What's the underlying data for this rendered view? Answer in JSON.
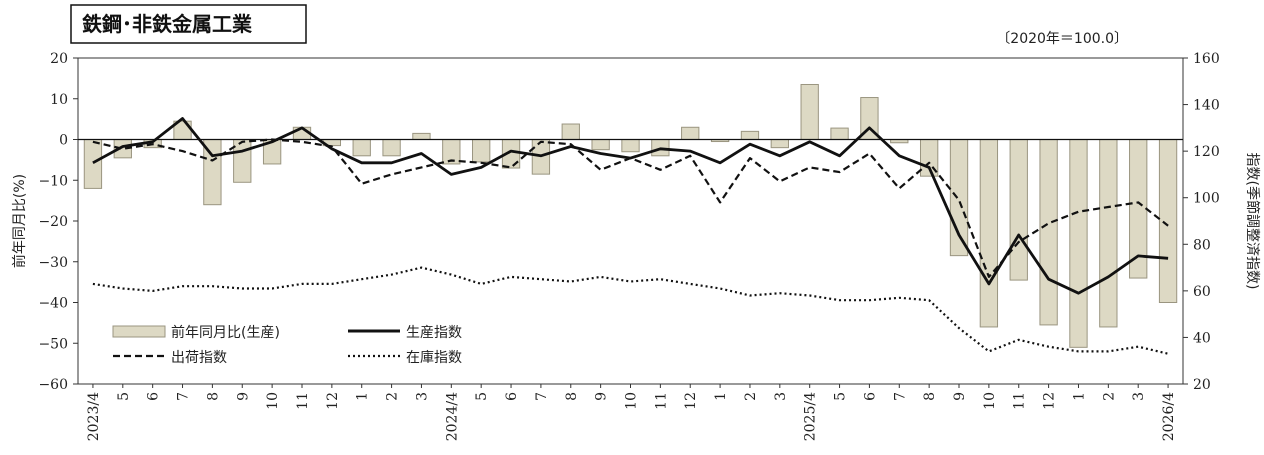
{
  "chart_data": {
    "type": "bar",
    "title": "鉄鋼･非鉄金属工業",
    "base_note": "〔2020年＝100.0〕",
    "ylabel_left": "前年同月比(%)",
    "ylabel_right": "指数(季節調整済指数)",
    "ylim_left": [
      -60,
      20
    ],
    "ylim_right": [
      20,
      160
    ],
    "yticks_left": [
      20,
      10,
      0,
      -10,
      -20,
      -30,
      -40,
      -50,
      -60
    ],
    "yticks_right": [
      160,
      140,
      120,
      100,
      80,
      60,
      40,
      20
    ],
    "categories": [
      "2023/4",
      "5",
      "6",
      "7",
      "8",
      "9",
      "10",
      "11",
      "12",
      "1",
      "2",
      "3",
      "2024/4",
      "5",
      "6",
      "7",
      "8",
      "9",
      "10",
      "11",
      "12",
      "1",
      "2",
      "3",
      "2025/4",
      "5",
      "6",
      "7",
      "8",
      "9",
      "10",
      "11",
      "12",
      "1",
      "2",
      "3",
      "2026/4"
    ],
    "series": [
      {
        "name": "前年同月比(生産)",
        "type": "bar",
        "axis": "left",
        "color": "#ddd9c4",
        "values": [
          -12.0,
          -4.5,
          -2.0,
          4.5,
          -16.0,
          -10.5,
          -6.0,
          3.0,
          -1.5,
          -4.0,
          -4.0,
          1.5,
          -6.0,
          -5.5,
          -7.0,
          -8.5,
          3.8,
          -2.5,
          -3.0,
          -4.0,
          3.0,
          -0.5,
          2.0,
          -2.0,
          13.5,
          2.8,
          10.3,
          -0.8,
          -9.0,
          -28.5,
          -46.0,
          -34.5,
          -45.5,
          -51.0,
          -46.0,
          -34.0,
          -40.0
        ]
      },
      {
        "name": "生産指数",
        "type": "line",
        "axis": "right",
        "style": "solid",
        "values": [
          115,
          122,
          124,
          134,
          118,
          120,
          124,
          130,
          121,
          115,
          115,
          119,
          110,
          113,
          120,
          118,
          122,
          119,
          117,
          121,
          120,
          115,
          123,
          118,
          124,
          118,
          130,
          118,
          113,
          84,
          63,
          84,
          65,
          59,
          66,
          75,
          74
        ]
      },
      {
        "name": "出荷指数",
        "type": "line",
        "axis": "right",
        "style": "dashed",
        "values": [
          124,
          121,
          123,
          120,
          116,
          124,
          125,
          124,
          122,
          106,
          110,
          113,
          116,
          115,
          113,
          124,
          123,
          112,
          117,
          112,
          118,
          98,
          117,
          107,
          113,
          111,
          119,
          104,
          115,
          99,
          66,
          81,
          89,
          94,
          96,
          98,
          88
        ]
      },
      {
        "name": "在庫指数",
        "type": "line",
        "axis": "right",
        "style": "dotted",
        "values": [
          63,
          61,
          60,
          62,
          62,
          61,
          61,
          63,
          63,
          65,
          67,
          70,
          67,
          63,
          66,
          65,
          64,
          66,
          64,
          65,
          63,
          61,
          58,
          59,
          58,
          56,
          56,
          57,
          56,
          44,
          34,
          39,
          36,
          34,
          34,
          36,
          33
        ]
      }
    ],
    "legend_placement": "bottom-left",
    "grid": false
  }
}
